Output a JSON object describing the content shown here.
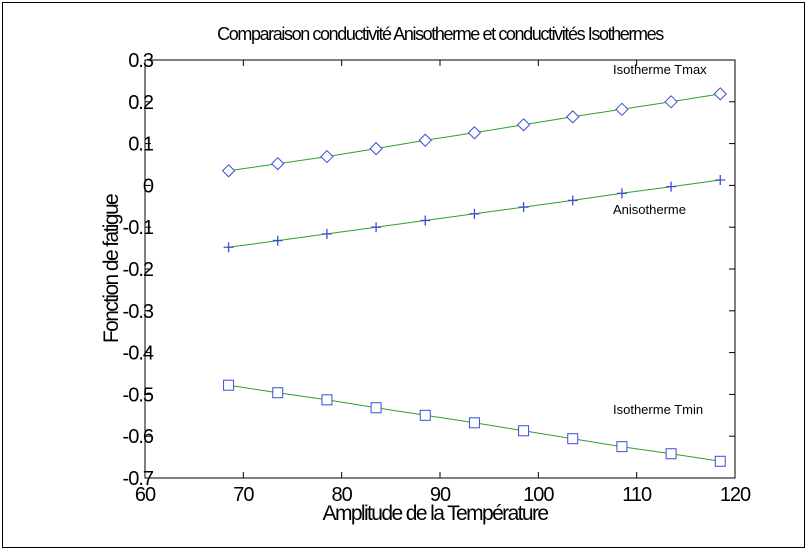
{
  "chart_data": {
    "type": "line",
    "title": "Comparaison conductivité Anisotherme et conductivités Isothermes",
    "xlabel": "Amplitude de la Température",
    "ylabel": "Fonction de fatigue",
    "xlim": [
      60,
      120
    ],
    "ylim": [
      -0.7,
      0.3
    ],
    "xticks": [
      "60",
      "70",
      "80",
      "90",
      "100",
      "110",
      "120"
    ],
    "yticks": [
      "0.3",
      "0.2",
      "0.1",
      "0",
      "-0.1",
      "-0.2",
      "-0.3",
      "-0.4",
      "-0.5",
      "-0.6",
      "-0.7"
    ],
    "grid": false,
    "line_color": "#2ca02c",
    "marker_color": "#3b4dd6",
    "x": [
      68.5,
      73.5,
      78.5,
      83.5,
      88.5,
      93.5,
      98.5,
      103.5,
      108.5,
      113.5,
      118.5
    ],
    "series": [
      {
        "label": "Isotherme Tmax",
        "marker": "diamond",
        "values": [
          0.035,
          0.052,
          0.069,
          0.088,
          0.108,
          0.126,
          0.145,
          0.164,
          0.182,
          0.2,
          0.219
        ]
      },
      {
        "label": "Anisotherme",
        "marker": "plus",
        "values": [
          -0.148,
          -0.132,
          -0.116,
          -0.1,
          -0.084,
          -0.068,
          -0.052,
          -0.036,
          -0.019,
          -0.003,
          0.013
        ]
      },
      {
        "label": "Isotherme Tmin",
        "marker": "square",
        "values": [
          -0.478,
          -0.496,
          -0.513,
          -0.532,
          -0.55,
          -0.568,
          -0.587,
          -0.606,
          -0.625,
          -0.642,
          -0.66
        ]
      }
    ]
  }
}
